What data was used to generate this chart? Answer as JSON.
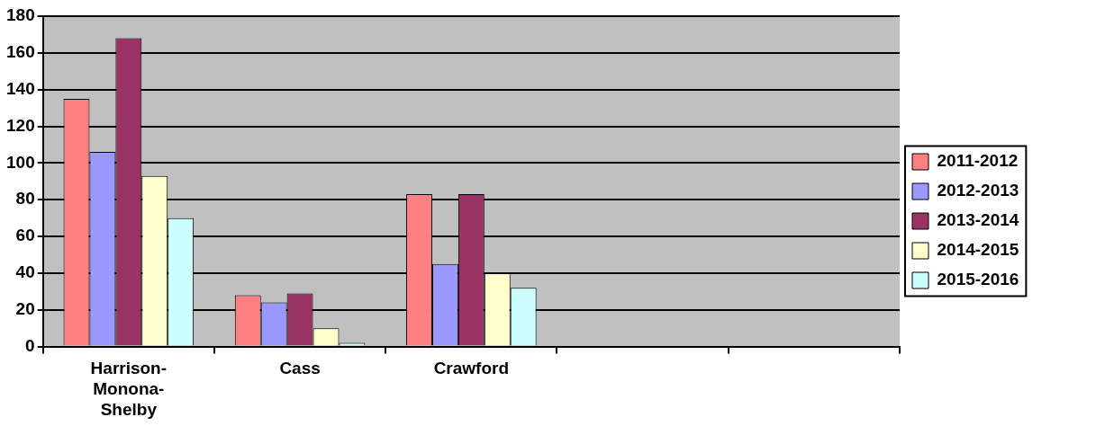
{
  "chart_data": {
    "type": "bar",
    "categories": [
      "Harrison-Monona-Shelby",
      "Cass",
      "Crawford",
      null,
      null
    ],
    "series": [
      {
        "name": "2011-2012",
        "color": "#ff8080",
        "values": [
          135,
          28,
          83,
          null,
          null
        ]
      },
      {
        "name": "2012-2013",
        "color": "#9999ff",
        "values": [
          106,
          24,
          45,
          null,
          null
        ]
      },
      {
        "name": "2013-2014",
        "color": "#993366",
        "values": [
          168,
          29,
          83,
          null,
          null
        ]
      },
      {
        "name": "2014-2015",
        "color": "#ffffcc",
        "values": [
          93,
          10,
          40,
          null,
          null
        ]
      },
      {
        "name": "2015-2016",
        "color": "#ccffff",
        "values": [
          70,
          2,
          32,
          null,
          null
        ]
      }
    ],
    "ylim": [
      0,
      180
    ],
    "yticks": [
      0,
      20,
      40,
      60,
      80,
      100,
      120,
      140,
      160,
      180
    ],
    "grid": "y",
    "legend": "right"
  }
}
